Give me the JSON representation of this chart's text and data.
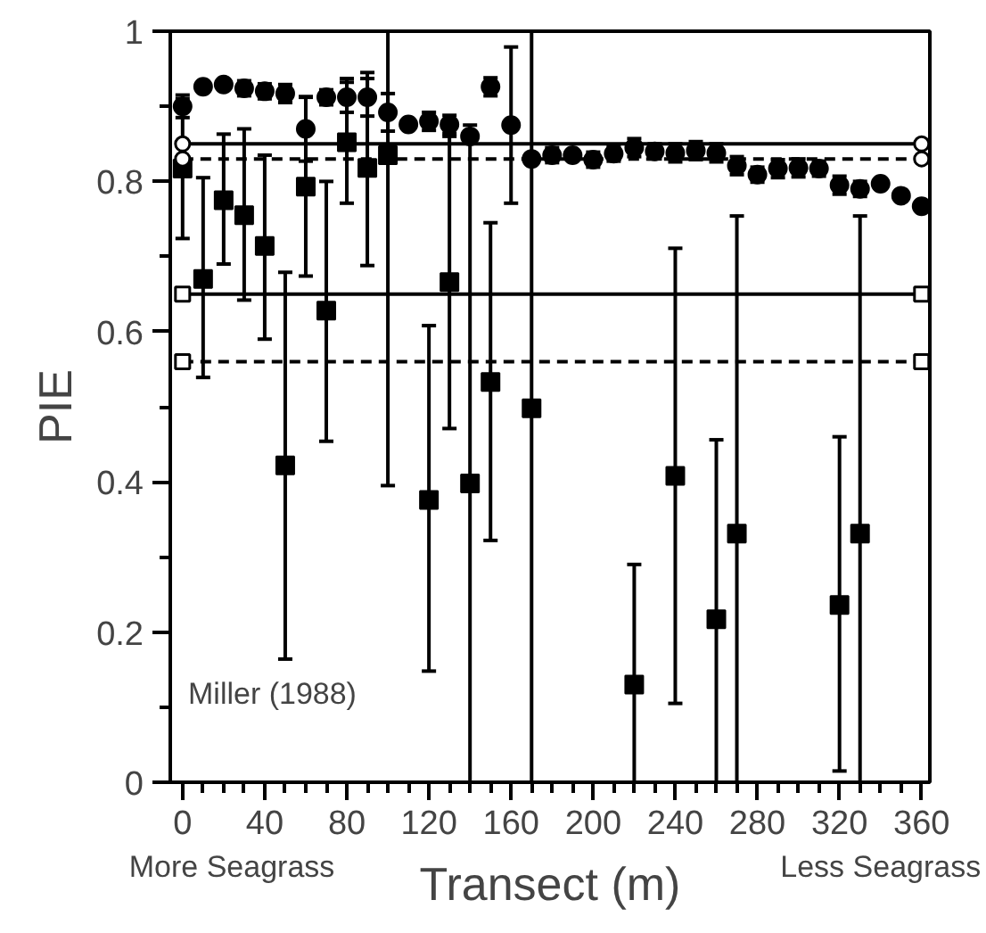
{
  "chart_data": {
    "type": "scatter",
    "xlabel": "Transect (m)",
    "ylabel": "PIE",
    "xlim": [
      -6,
      364
    ],
    "ylim": [
      0,
      1
    ],
    "xticks": [
      0,
      40,
      80,
      120,
      160,
      200,
      240,
      280,
      320,
      360,
      {
        "value": 10,
        "label": null
      },
      {
        "value": 20,
        "label": null
      },
      {
        "value": 30,
        "label": null
      },
      {
        "value": 50,
        "label": null
      },
      {
        "value": 60,
        "label": null
      },
      {
        "value": 70,
        "label": null
      },
      {
        "value": 90,
        "label": null
      },
      {
        "value": 100,
        "label": null
      },
      {
        "value": 110,
        "label": null
      },
      {
        "value": 130,
        "label": null
      },
      {
        "value": 140,
        "label": null
      },
      {
        "value": 150,
        "label": null
      },
      {
        "value": 170,
        "label": null
      },
      {
        "value": 180,
        "label": null
      },
      {
        "value": 190,
        "label": null
      },
      {
        "value": 210,
        "label": null
      },
      {
        "value": 220,
        "label": null
      },
      {
        "value": 230,
        "label": null
      },
      {
        "value": 250,
        "label": null
      },
      {
        "value": 260,
        "label": null
      },
      {
        "value": 270,
        "label": null
      },
      {
        "value": 290,
        "label": null
      },
      {
        "value": 300,
        "label": null
      },
      {
        "value": 310,
        "label": null
      },
      {
        "value": 330,
        "label": null
      },
      {
        "value": 340,
        "label": null
      },
      {
        "value": 350,
        "label": null
      }
    ],
    "yticks": [
      0,
      0.2,
      0.4,
      0.6,
      0.8,
      1,
      {
        "value": 0.1,
        "label": null
      },
      {
        "value": 0.3,
        "label": null
      },
      {
        "value": 0.5,
        "label": null
      },
      {
        "value": 0.7,
        "label": null
      },
      {
        "value": 0.9,
        "label": null
      }
    ],
    "grid": false,
    "series": [
      {
        "marker": "circle",
        "color": "#000000",
        "x": [
          0,
          10,
          20,
          30,
          40,
          50,
          60,
          70,
          80,
          90,
          100,
          110,
          120,
          130,
          140,
          150,
          160,
          170,
          180,
          190,
          200,
          210,
          220,
          230,
          240,
          250,
          260,
          270,
          280,
          290,
          300,
          310,
          320,
          330,
          340,
          350,
          360
        ],
        "values": [
          0.9,
          0.926,
          0.929,
          0.924,
          0.92,
          0.917,
          0.87,
          0.912,
          0.912,
          0.912,
          0.892,
          0.876,
          0.88,
          0.876,
          0.86,
          0.926,
          0.875,
          0.83,
          0.835,
          0.835,
          0.829,
          0.837,
          0.845,
          0.84,
          0.838,
          0.841,
          0.838,
          0.821,
          0.809,
          0.817,
          0.818,
          0.817,
          0.795,
          0.79,
          0.797,
          0.781,
          0.767
        ],
        "errors": [
          0.015,
          null,
          null,
          0.01,
          0.01,
          0.012,
          0.043,
          0.01,
          0.02,
          0.025,
          0.025,
          null,
          0.012,
          0.012,
          null,
          0.012,
          [
            0.771,
            0.979
          ],
          null,
          0.01,
          null,
          0.01,
          0.01,
          0.012,
          0.01,
          0.012,
          0.012,
          0.012,
          0.012,
          0.01,
          0.012,
          0.012,
          0.01,
          0.012,
          0.01,
          null,
          null,
          null
        ]
      },
      {
        "marker": "square",
        "color": "#000000",
        "x": [
          0,
          10,
          20,
          30,
          40,
          50,
          60,
          70,
          80,
          90,
          100,
          120,
          130,
          140,
          150,
          170,
          220,
          240,
          260,
          270,
          320,
          330
        ],
        "values": [
          0.817,
          0.67,
          0.775,
          0.755,
          0.714,
          0.422,
          0.793,
          0.628,
          0.852,
          0.818,
          0.835,
          0.376,
          0.666,
          0.398,
          0.533,
          0.498,
          0.13,
          0.408,
          0.217,
          0.331,
          0.236,
          0.331
        ],
        "errors": [
          [
            0.724,
            0.91
          ],
          [
            0.539,
            0.805
          ],
          [
            0.69,
            0.863
          ],
          [
            0.642,
            0.87
          ],
          [
            0.59,
            0.835
          ],
          [
            0.164,
            0.679
          ],
          [
            0.674,
            0.912
          ],
          [
            0.454,
            0.8
          ],
          [
            0.771,
            0.937
          ],
          [
            0.688,
            0.945
          ],
          [
            0.395,
            1.0
          ],
          [
            0.148,
            0.608
          ],
          [
            0.471,
            0.86
          ],
          [
            0,
            0.875
          ],
          [
            0.322,
            0.745
          ],
          [
            0,
            1.0
          ],
          [
            0,
            0.29
          ],
          [
            0.105,
            0.711
          ],
          [
            0,
            0.456
          ],
          [
            0,
            0.754
          ],
          [
            0.015,
            0.46
          ],
          [
            0,
            0.754
          ]
        ]
      },
      {
        "type": "line",
        "marker": "circle",
        "line_style": "solid",
        "color": "#000000",
        "x": [
          0,
          360
        ],
        "values": [
          0.85,
          0.85
        ]
      },
      {
        "type": "line",
        "marker": "circle",
        "line_style": "dashed",
        "color": "#000000",
        "x": [
          0,
          360
        ],
        "values": [
          0.83,
          0.83
        ]
      },
      {
        "type": "line",
        "marker": "square",
        "line_style": "solid",
        "color": "#000000",
        "x": [
          0,
          360
        ],
        "values": [
          0.65,
          0.65
        ]
      },
      {
        "type": "line",
        "marker": "square",
        "line_style": "dashed",
        "color": "#000000",
        "x": [
          0,
          360
        ],
        "values": [
          0.56,
          0.56
        ]
      }
    ],
    "annotations": [
      "Miller (1988)",
      "More Seagrass",
      "Less Seagrass"
    ]
  }
}
